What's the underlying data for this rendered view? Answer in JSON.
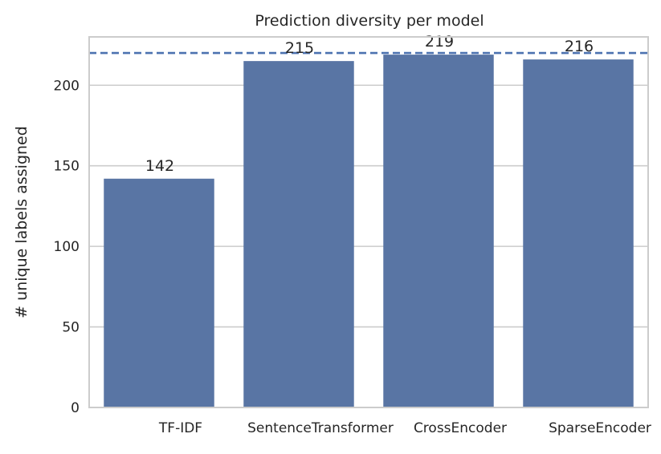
{
  "chart_data": {
    "type": "bar",
    "title": "Prediction diversity per model",
    "xlabel": "",
    "ylabel": "# unique labels assigned",
    "categories": [
      "TF-IDF",
      "SentenceTransformer",
      "CrossEncoder",
      "SparseEncoder"
    ],
    "values": [
      142,
      215,
      219,
      216
    ],
    "data_labels": [
      "142",
      "215",
      "219",
      "216"
    ],
    "ylim": [
      0,
      230
    ],
    "yticks": [
      0,
      50,
      100,
      150,
      200
    ],
    "ytick_labels": [
      "0",
      "50",
      "100",
      "150",
      "200"
    ],
    "reference_line": {
      "value": 220,
      "style": "dashed"
    },
    "grid": "horizontal",
    "colors": {
      "bar": "#5975a4",
      "reference_line": "#4c72b0",
      "grid": "#cccccc",
      "axes": "#cccccc"
    }
  }
}
